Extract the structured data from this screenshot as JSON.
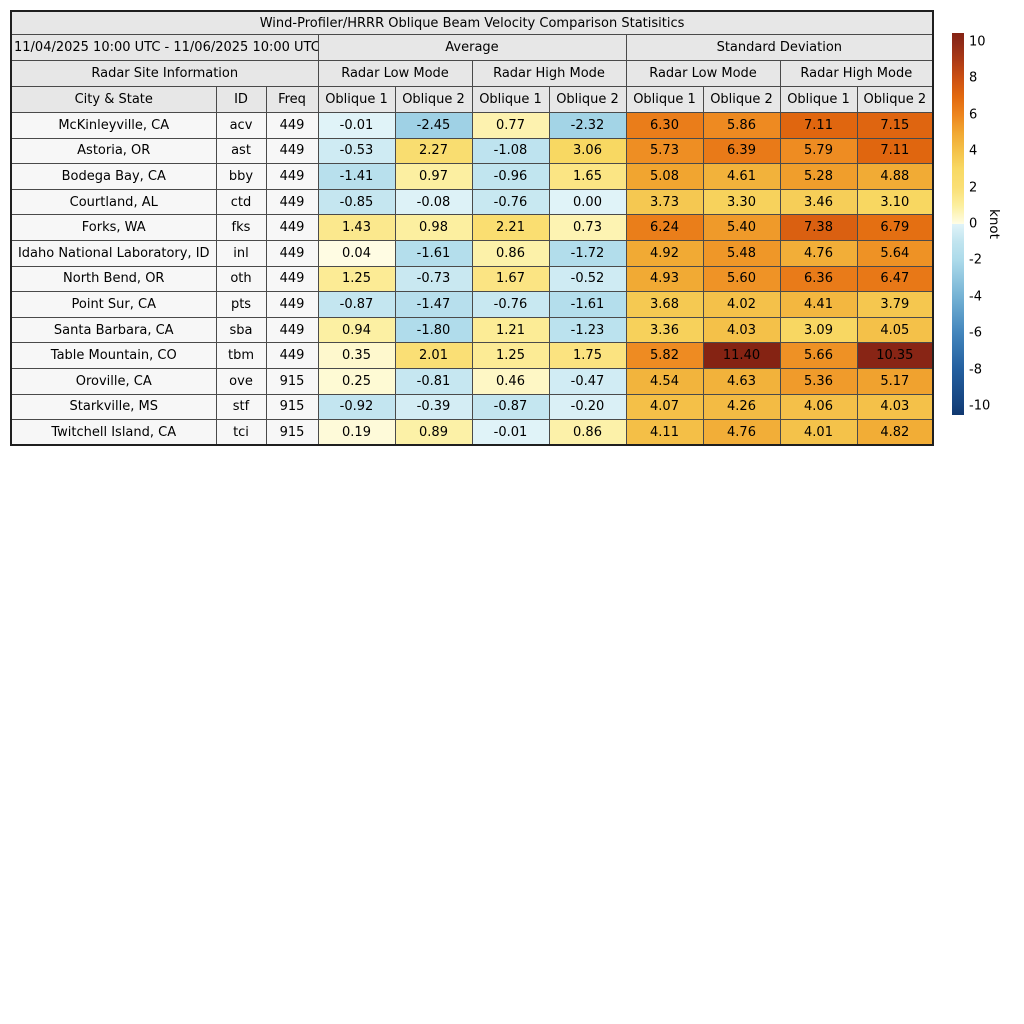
{
  "chart_data": {
    "type": "table",
    "title": "Wind-Profiler/HRRR Oblique Beam Velocity Comparison Statisitics",
    "date_range": "11/04/2025 10:00 UTC - 11/06/2025 10:00 UTC",
    "group_headers": [
      "Average",
      "Standard Deviation"
    ],
    "subgroup_headers": [
      "Radar Site Information",
      "Radar Low Mode",
      "Radar High Mode",
      "Radar Low Mode",
      "Radar High Mode"
    ],
    "columns": [
      "City & State",
      "ID",
      "Freq",
      "Oblique 1",
      "Oblique 2",
      "Oblique 1",
      "Oblique 2",
      "Oblique 1",
      "Oblique 2",
      "Oblique 1",
      "Oblique 2"
    ],
    "rows": [
      {
        "city": "McKinleyville, CA",
        "id": "acv",
        "freq": "449",
        "values": [
          "-0.01",
          "-2.45",
          "0.77",
          "-2.32",
          "6.30",
          "5.86",
          "7.11",
          "7.15"
        ]
      },
      {
        "city": "Astoria, OR",
        "id": "ast",
        "freq": "449",
        "values": [
          "-0.53",
          "2.27",
          "-1.08",
          "3.06",
          "5.73",
          "6.39",
          "5.79",
          "7.11"
        ]
      },
      {
        "city": "Bodega Bay, CA",
        "id": "bby",
        "freq": "449",
        "values": [
          "-1.41",
          "0.97",
          "-0.96",
          "1.65",
          "5.08",
          "4.61",
          "5.28",
          "4.88"
        ]
      },
      {
        "city": "Courtland, AL",
        "id": "ctd",
        "freq": "449",
        "values": [
          "-0.85",
          "-0.08",
          "-0.76",
          "0.00",
          "3.73",
          "3.30",
          "3.46",
          "3.10"
        ]
      },
      {
        "city": "Forks, WA",
        "id": "fks",
        "freq": "449",
        "values": [
          "1.43",
          "0.98",
          "2.21",
          "0.73",
          "6.24",
          "5.40",
          "7.38",
          "6.79"
        ]
      },
      {
        "city": "Idaho National Laboratory, ID",
        "id": "inl",
        "freq": "449",
        "values": [
          "0.04",
          "-1.61",
          "0.86",
          "-1.72",
          "4.92",
          "5.48",
          "4.76",
          "5.64"
        ]
      },
      {
        "city": "North Bend, OR",
        "id": "oth",
        "freq": "449",
        "values": [
          "1.25",
          "-0.73",
          "1.67",
          "-0.52",
          "4.93",
          "5.60",
          "6.36",
          "6.47"
        ]
      },
      {
        "city": "Point Sur, CA",
        "id": "pts",
        "freq": "449",
        "values": [
          "-0.87",
          "-1.47",
          "-0.76",
          "-1.61",
          "3.68",
          "4.02",
          "4.41",
          "3.79"
        ]
      },
      {
        "city": "Santa Barbara, CA",
        "id": "sba",
        "freq": "449",
        "values": [
          "0.94",
          "-1.80",
          "1.21",
          "-1.23",
          "3.36",
          "4.03",
          "3.09",
          "4.05"
        ]
      },
      {
        "city": "Table Mountain, CO",
        "id": "tbm",
        "freq": "449",
        "values": [
          "0.35",
          "2.01",
          "1.25",
          "1.75",
          "5.82",
          "11.40",
          "5.66",
          "10.35"
        ]
      },
      {
        "city": "Oroville, CA",
        "id": "ove",
        "freq": "915",
        "values": [
          "0.25",
          "-0.81",
          "0.46",
          "-0.47",
          "4.54",
          "4.63",
          "5.36",
          "5.17"
        ]
      },
      {
        "city": "Starkville, MS",
        "id": "stf",
        "freq": "915",
        "values": [
          "-0.92",
          "-0.39",
          "-0.87",
          "-0.20",
          "4.07",
          "4.26",
          "4.06",
          "4.03"
        ]
      },
      {
        "city": "Twitchell Island, CA",
        "id": "tci",
        "freq": "915",
        "values": [
          "0.19",
          "0.89",
          "-0.01",
          "0.86",
          "4.11",
          "4.76",
          "4.01",
          "4.82"
        ]
      }
    ]
  },
  "colorbar": {
    "label": "knot",
    "ticks": [
      "10",
      "8",
      "6",
      "4",
      "2",
      "0",
      "-2",
      "-4",
      "-6",
      "-8",
      "-10"
    ],
    "tick_values": [
      10,
      8,
      6,
      4,
      2,
      0,
      -2,
      -4,
      -6,
      -8,
      -10
    ],
    "range": [
      -10.5,
      10.5
    ],
    "stops_negative": [
      [
        -10.5,
        "#10376E"
      ],
      [
        -10,
        "#15427D"
      ],
      [
        -8,
        "#235F9F"
      ],
      [
        -6,
        "#4285BC"
      ],
      [
        -4,
        "#74B2D4"
      ],
      [
        -2,
        "#ACDAEA"
      ],
      [
        -1,
        "#C0E4EF"
      ],
      [
        0,
        "#E0F3F8"
      ]
    ],
    "stops_positive": [
      [
        0,
        "#FFFDE6"
      ],
      [
        1,
        "#FCEF9F"
      ],
      [
        2,
        "#FADF75"
      ],
      [
        3,
        "#F8D964"
      ],
      [
        4,
        "#F4C24A"
      ],
      [
        5,
        "#F1A832"
      ],
      [
        6,
        "#ED851E"
      ],
      [
        7,
        "#E2690F"
      ],
      [
        8,
        "#CC5013"
      ],
      [
        9,
        "#AC3A16"
      ],
      [
        10,
        "#8E2A18"
      ],
      [
        10.5,
        "#852313"
      ]
    ]
  }
}
